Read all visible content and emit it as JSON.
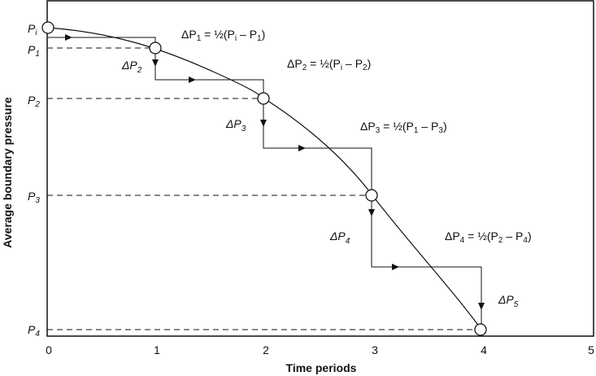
{
  "axes": {
    "x_title": "Time periods",
    "y_title": "Average boundary pressure",
    "x_ticks": [
      "0",
      "1",
      "2",
      "3",
      "4",
      "5"
    ]
  },
  "pressure_labels": [
    {
      "base": "P",
      "sub": "i"
    },
    {
      "base": "P",
      "sub": "1"
    },
    {
      "base": "P",
      "sub": "2"
    },
    {
      "base": "P",
      "sub": "3"
    },
    {
      "base": "P",
      "sub": "4"
    }
  ],
  "delta_labels": [
    {
      "base": "ΔP",
      "sub": "2"
    },
    {
      "base": "ΔP",
      "sub": "3"
    },
    {
      "base": "ΔP",
      "sub": "4"
    },
    {
      "base": "ΔP",
      "sub": "5"
    }
  ],
  "equations": [
    {
      "lhs": "ΔP",
      "lhs_sub": "1",
      "mid": " = ½(P",
      "a_sub": "i",
      "minus": " – P",
      "b_sub": "1",
      "end": ")"
    },
    {
      "lhs": "ΔP",
      "lhs_sub": "2",
      "mid": " = ½(P",
      "a_sub": "i",
      "minus": " – P",
      "b_sub": "2",
      "end": ")"
    },
    {
      "lhs": "ΔP",
      "lhs_sub": "3",
      "mid": " = ½(P",
      "a_sub": "1",
      "minus": " – P",
      "b_sub": "3",
      "end": ")"
    },
    {
      "lhs": "ΔP",
      "lhs_sub": "4",
      "mid": " = ½(P",
      "a_sub": "2",
      "minus": " – P",
      "b_sub": "4",
      "end": ")"
    }
  ],
  "colors": {
    "line": "#111111",
    "dashed": "#111111",
    "background": "#ffffff"
  }
}
